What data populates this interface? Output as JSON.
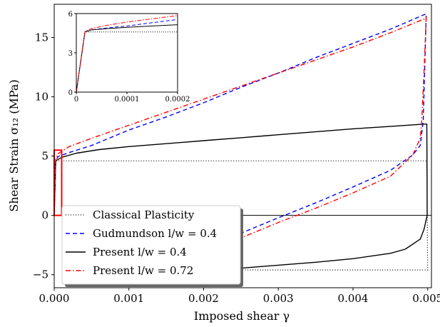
{
  "chart_data": [
    {
      "type": "line",
      "xlabel": "Imposed shear γ",
      "ylabel": "Shear Strain σ₁₂ (MPa)",
      "xlim": [
        0,
        0.00505
      ],
      "ylim": [
        -6.1,
        17.8
      ],
      "x_ticks": [
        "0.000",
        "0.001",
        "0.002",
        "0.003",
        "0.004",
        "0.005"
      ],
      "x_tick_values": [
        0,
        0.001,
        0.002,
        0.003,
        0.004,
        0.005
      ],
      "y_ticks": [
        "−5",
        "0",
        "5",
        "10",
        "15"
      ],
      "y_tick_values": [
        -5,
        0,
        5,
        10,
        15
      ],
      "reference_line_y": 0,
      "highlight_box": {
        "x": [
          0,
          0.0001
        ],
        "y": [
          0,
          5.5
        ],
        "color": "#ff0000"
      },
      "grid": false,
      "legend_position": "lower-left",
      "series": [
        {
          "name": "Classical Plasticity",
          "color": "#000000",
          "dash": "1,2.5",
          "width": 1.2,
          "points": [
            [
              0,
              0
            ],
            [
              2e-05,
              4.6
            ],
            [
              0.004985,
              4.6
            ],
            [
              0.00499,
              3
            ],
            [
              0.004995,
              0
            ],
            [
              0.004997,
              -3
            ],
            [
              0.005,
              -4.6
            ],
            [
              0.00356,
              -4.6
            ],
            [
              0.0025,
              -4.6
            ]
          ]
        },
        {
          "name": "Gudmundson l/w = 0.4",
          "color": "#0000ff",
          "dash": "6,4",
          "width": 1.4,
          "points": [
            [
              0,
              0
            ],
            [
              2e-05,
              4.6
            ],
            [
              5e-05,
              4.95
            ],
            [
              0.0002,
              5.3
            ],
            [
              0.0005,
              5.9
            ],
            [
              0.001,
              7.2
            ],
            [
              0.0015,
              8.3
            ],
            [
              0.002,
              9.5
            ],
            [
              0.0025,
              10.8
            ],
            [
              0.003,
              12.0
            ],
            [
              0.0035,
              13.3
            ],
            [
              0.004,
              14.5
            ],
            [
              0.0045,
              15.7
            ],
            [
              0.00498,
              17.0
            ],
            [
              0.00494,
              8
            ],
            [
              0.0049,
              5.9
            ],
            [
              0.0048,
              5.1
            ],
            [
              0.0045,
              3.8
            ],
            [
              0.004,
              2.4
            ],
            [
              0.0035,
              1.05
            ],
            [
              0.003,
              -0.2
            ],
            [
              0.0025,
              -1.5
            ]
          ]
        },
        {
          "name": "Present l/w = 0.4",
          "color": "#000000",
          "dash": "",
          "width": 1.4,
          "points": [
            [
              0,
              0
            ],
            [
              2e-05,
              4.6
            ],
            [
              0.0001,
              4.9
            ],
            [
              0.0003,
              5.25
            ],
            [
              0.0006,
              5.55
            ],
            [
              0.001,
              5.8
            ],
            [
              0.0015,
              6.05
            ],
            [
              0.002,
              6.3
            ],
            [
              0.0025,
              6.55
            ],
            [
              0.003,
              6.8
            ],
            [
              0.0035,
              7.05
            ],
            [
              0.004,
              7.3
            ],
            [
              0.0045,
              7.5
            ],
            [
              0.00495,
              7.7
            ],
            [
              0.004988,
              7.7
            ],
            [
              0.004992,
              3
            ],
            [
              0.004993,
              0
            ],
            [
              0.00495,
              -1.2
            ],
            [
              0.0049,
              -2.0
            ],
            [
              0.0047,
              -2.85
            ],
            [
              0.0045,
              -3.2
            ],
            [
              0.004,
              -3.65
            ],
            [
              0.0035,
              -3.95
            ],
            [
              0.003,
              -4.2
            ],
            [
              0.0025,
              -4.45
            ]
          ]
        },
        {
          "name": "Present l/w = 0.72",
          "color": "#ff0000",
          "dash": "7,3,1.5,3",
          "width": 1.4,
          "points": [
            [
              0,
              0
            ],
            [
              2e-05,
              4.7
            ],
            [
              5e-05,
              5.2
            ],
            [
              0.0002,
              5.8
            ],
            [
              0.0005,
              6.5
            ],
            [
              0.001,
              7.6
            ],
            [
              0.0015,
              8.7
            ],
            [
              0.002,
              9.8
            ],
            [
              0.0025,
              10.9
            ],
            [
              0.003,
              12.0
            ],
            [
              0.0035,
              13.1
            ],
            [
              0.004,
              14.2
            ],
            [
              0.0045,
              15.4
            ],
            [
              0.00497,
              16.6
            ],
            [
              0.00498,
              16.7
            ],
            [
              0.00495,
              12
            ],
            [
              0.00492,
              8
            ],
            [
              0.0049,
              6.5
            ],
            [
              0.0048,
              5.1
            ],
            [
              0.0045,
              3.3
            ],
            [
              0.004,
              1.9
            ],
            [
              0.0035,
              0.6
            ],
            [
              0.003,
              -0.6
            ],
            [
              0.0025,
              -1.9
            ]
          ]
        }
      ]
    },
    {
      "type": "line",
      "xlim": [
        0,
        0.0002
      ],
      "ylim": [
        0,
        6
      ],
      "x_ticks": [
        "0",
        "0.0001",
        "0.0002"
      ],
      "x_tick_values": [
        0,
        0.0001,
        0.0002
      ],
      "y_ticks": [
        "0",
        "3",
        "6"
      ],
      "y_tick_values": [
        0,
        3,
        6
      ],
      "series": [
        {
          "name": "Classical Plasticity",
          "color": "#000000",
          "dash": "1,2",
          "width": 1,
          "points": [
            [
              0,
              0
            ],
            [
              1.7e-05,
              4.6
            ],
            [
              0.0002,
              4.6
            ]
          ]
        },
        {
          "name": "Gudmundson l/w = 0.4",
          "color": "#0000ff",
          "dash": "5,3",
          "width": 1,
          "points": [
            [
              0,
              0
            ],
            [
              1.7e-05,
              4.6
            ],
            [
              3e-05,
              4.75
            ],
            [
              6e-05,
              4.9
            ],
            [
              0.0001,
              5.05
            ],
            [
              0.00015,
              5.3
            ],
            [
              0.0002,
              5.55
            ]
          ]
        },
        {
          "name": "Present l/w = 0.4",
          "color": "#000000",
          "dash": "",
          "width": 1,
          "points": [
            [
              0,
              0
            ],
            [
              1.7e-05,
              4.6
            ],
            [
              3e-05,
              4.75
            ],
            [
              6e-05,
              4.85
            ],
            [
              0.0001,
              4.95
            ],
            [
              0.00015,
              5.05
            ],
            [
              0.0002,
              5.15
            ]
          ]
        },
        {
          "name": "Present l/w = 0.72",
          "color": "#ff0000",
          "dash": "6,2,1.5,2",
          "width": 1,
          "points": [
            [
              0,
              0
            ],
            [
              1.7e-05,
              4.65
            ],
            [
              3e-05,
              4.85
            ],
            [
              6e-05,
              5.1
            ],
            [
              0.0001,
              5.35
            ],
            [
              0.00015,
              5.6
            ],
            [
              0.0002,
              5.85
            ]
          ]
        }
      ]
    }
  ]
}
